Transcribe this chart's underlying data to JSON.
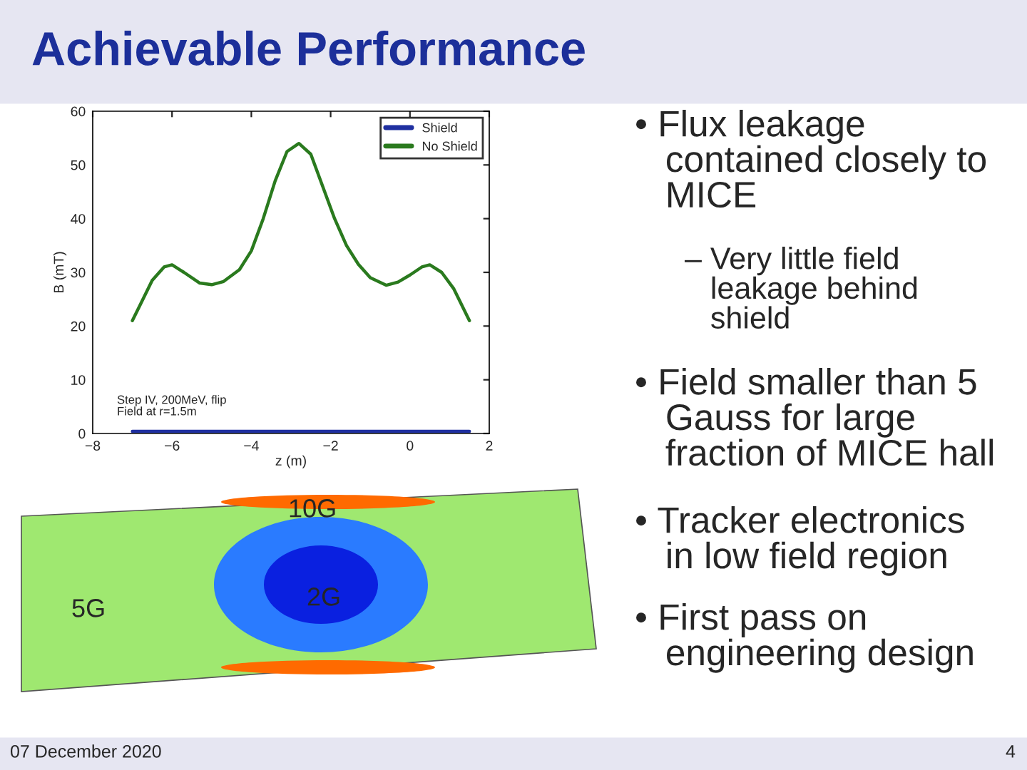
{
  "chart_data": {
    "type": "line",
    "title": "Achievable Performance",
    "xlabel": "z (m)",
    "ylabel": "B (mT)",
    "series": [
      {
        "name": "Shield",
        "color": "#1f2fa0",
        "x": [
          -7,
          -5,
          -3,
          -1,
          1.5
        ],
        "values": [
          0.4,
          0.4,
          0.4,
          0.4,
          0.4
        ]
      },
      {
        "name": "No Shield",
        "color": "#2a7a1e",
        "x": [
          -7,
          -6.8,
          -6.5,
          -6.2,
          -6,
          -5.7,
          -5.3,
          -5,
          -4.7,
          -4.3,
          -4,
          -3.7,
          -3.4,
          -3.1,
          -2.8,
          -2.5,
          -2.2,
          -1.9,
          -1.6,
          -1.3,
          -1,
          -0.6,
          -0.3,
          0,
          0.3,
          0.5,
          0.8,
          1.1,
          1.5
        ],
        "values": [
          21,
          24,
          28.5,
          31,
          31.4,
          30,
          28,
          27.7,
          28.3,
          30.5,
          34,
          40,
          47,
          52.5,
          54,
          52,
          46,
          40,
          35,
          31.5,
          29,
          27.6,
          28.2,
          29.5,
          31,
          31.4,
          30,
          27,
          21
        ]
      }
    ],
    "xlim": [
      -8,
      2
    ],
    "ylim": [
      0,
      60
    ],
    "xticks": [
      {
        "value": -8,
        "label": "−8"
      },
      {
        "value": -6,
        "label": "−6"
      },
      {
        "value": -4,
        "label": "−4"
      },
      {
        "value": -2,
        "label": "−2"
      },
      0,
      2
    ],
    "yticks": [
      0,
      10,
      20,
      30,
      40,
      50,
      60
    ],
    "legend": "top right",
    "grid": false,
    "line_style": "solid",
    "marker": "none",
    "annotations": [
      "Step IV, 200MeV, flip\nField at r=1.5m",
      "• Flux leakage\n   contained closely to\n   MICE",
      "– Very little field\n   leakage behind\n   shield",
      "• Field smaller than 5\n   Gauss for large\n   fraction of MICE hall",
      "• Tracker electronics\n   in low field region",
      "• First pass on\n   engineering design",
      "10G",
      "5G",
      "2G",
      "07 December 2020",
      "4"
    ]
  }
}
